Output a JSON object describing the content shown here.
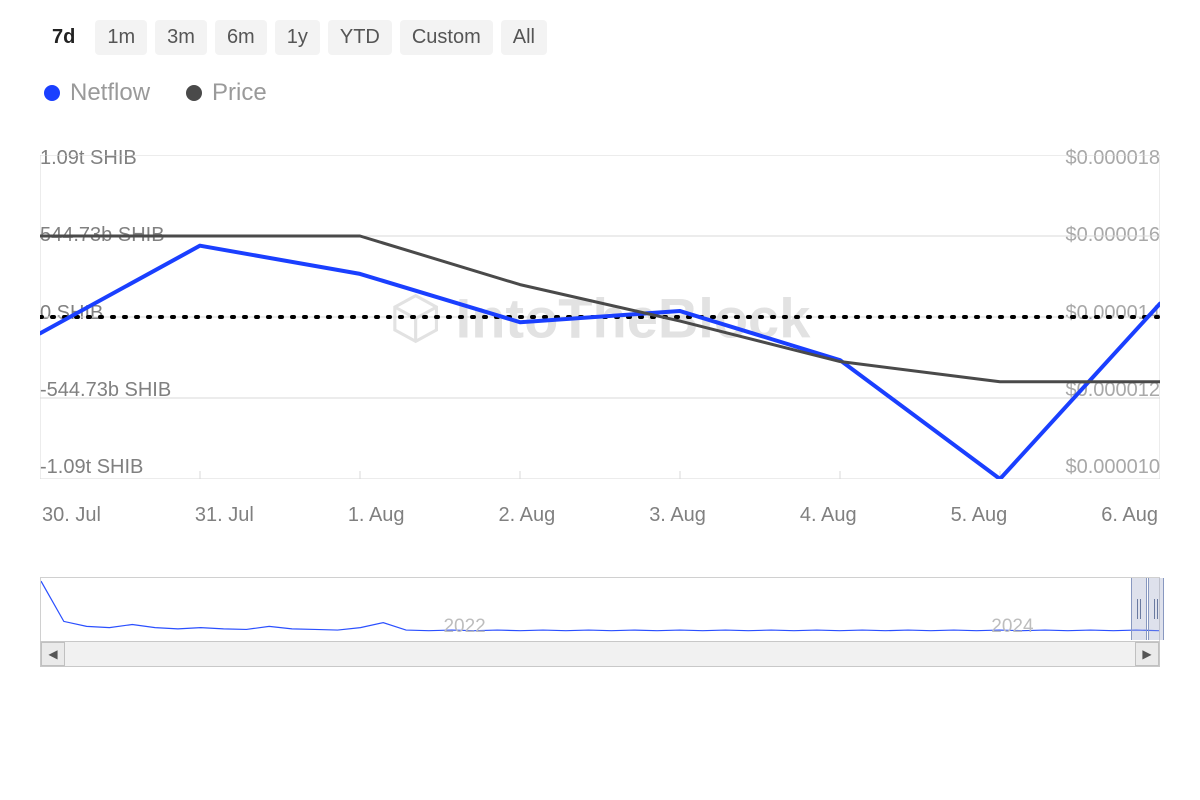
{
  "range_selector": {
    "tabs": [
      {
        "label": "7d",
        "active": true
      },
      {
        "label": "1m",
        "active": false
      },
      {
        "label": "3m",
        "active": false
      },
      {
        "label": "6m",
        "active": false
      },
      {
        "label": "1y",
        "active": false
      },
      {
        "label": "YTD",
        "active": false
      },
      {
        "label": "Custom",
        "active": false
      },
      {
        "label": "All",
        "active": false
      }
    ]
  },
  "legend": {
    "items": [
      {
        "name": "Netflow",
        "color": "#1a3fff"
      },
      {
        "name": "Price",
        "color": "#4a4a4a"
      }
    ]
  },
  "watermark": {
    "text": "IntoTheBlock",
    "color": "#e2e2e2",
    "fontsize": 56
  },
  "chart": {
    "type": "line",
    "background_color": "#ffffff",
    "x_categories": [
      "30. Jul",
      "31. Jul",
      "1. Aug",
      "2. Aug",
      "3. Aug",
      "4. Aug",
      "5. Aug",
      "6. Aug"
    ],
    "y_left": {
      "ticks": [
        "1.09t SHIB",
        "544.73b SHIB",
        "0 SHIB",
        "-544.73b SHIB",
        "-1.09t SHIB"
      ],
      "min": -1090,
      "max": 1090,
      "label_color": "#808080",
      "label_fontsize": 20
    },
    "y_right": {
      "ticks": [
        "$0.000018",
        "$0.000016",
        "$0.000014",
        "$0.000012",
        "$0.000010"
      ],
      "min": 1e-05,
      "max": 1.8e-05,
      "label_color": "#a8a8a8",
      "label_fontsize": 20
    },
    "zero_line": {
      "axis": "y_left",
      "value": 0,
      "style": "dotted",
      "color": "#000000",
      "width": 4,
      "dash": "3,8"
    },
    "gridline_color": "#d8d8d8",
    "series": [
      {
        "name": "Netflow",
        "axis": "y_left",
        "color": "#1a3fff",
        "line_width": 4,
        "values": [
          -110,
          480,
          290,
          -35,
          40,
          -290,
          -1090,
          90
        ]
      },
      {
        "name": "Price",
        "axis": "y_right",
        "color": "#4a4a4a",
        "line_width": 3,
        "values": [
          1.6e-05,
          1.6e-05,
          1.6e-05,
          1.48e-05,
          1.39e-05,
          1.29e-05,
          1.24e-05,
          1.24e-05
        ]
      }
    ]
  },
  "navigator": {
    "years": [
      {
        "label": "2022",
        "pos_pct": 36
      },
      {
        "label": "2024",
        "pos_pct": 85
      }
    ],
    "handle_left_pct": 97.5,
    "handle_right_pct": 99.0,
    "line_color": "#2a4fff",
    "sparkline": [
      95,
      30,
      22,
      20,
      25,
      20,
      18,
      20,
      18,
      17,
      22,
      18,
      17,
      16,
      20,
      28,
      16,
      15,
      16,
      15,
      16,
      15,
      16,
      15,
      16,
      15,
      16,
      15,
      16,
      15,
      16,
      15,
      16,
      15,
      16,
      15,
      16,
      15,
      16,
      15,
      16,
      15,
      16,
      15,
      16,
      15,
      16,
      15,
      16,
      15
    ]
  }
}
